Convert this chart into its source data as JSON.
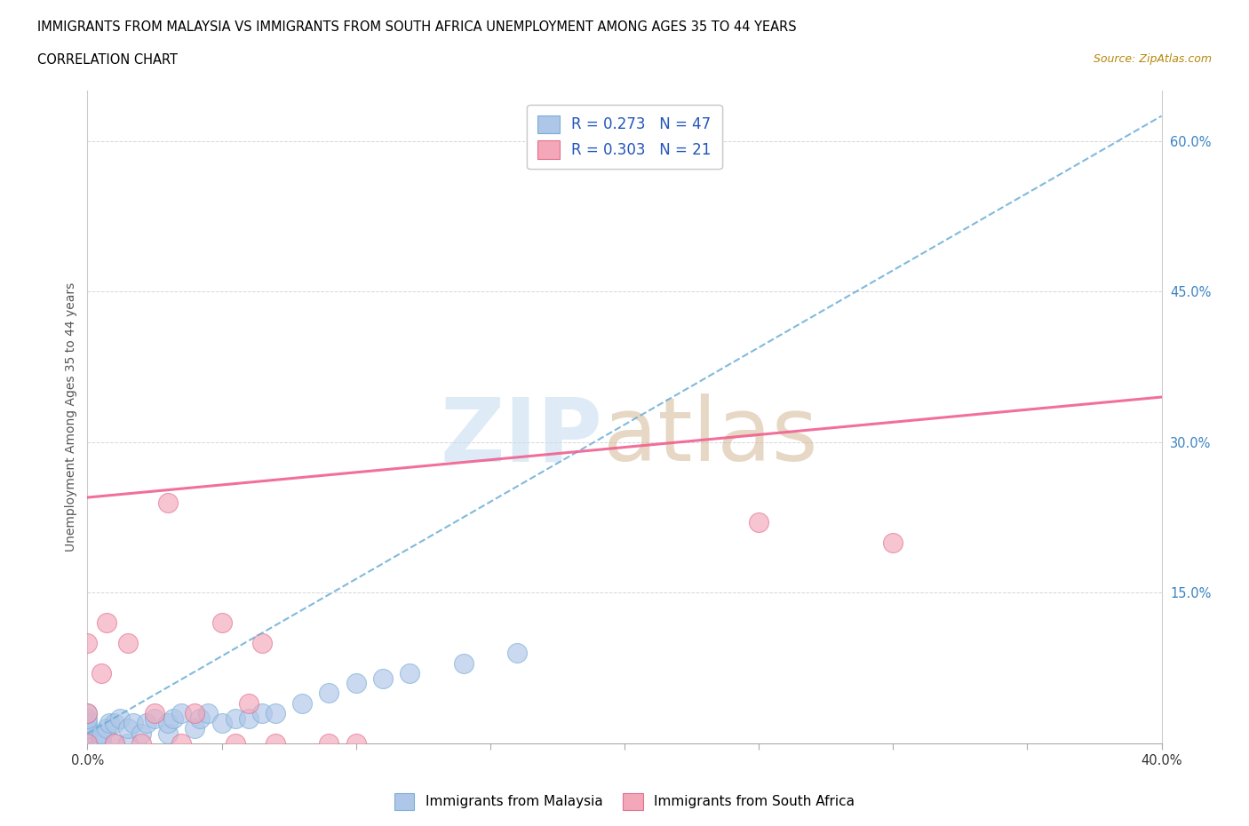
{
  "title_line1": "IMMIGRANTS FROM MALAYSIA VS IMMIGRANTS FROM SOUTH AFRICA UNEMPLOYMENT AMONG AGES 35 TO 44 YEARS",
  "title_line2": "CORRELATION CHART",
  "source_text": "Source: ZipAtlas.com",
  "ylabel": "Unemployment Among Ages 35 to 44 years",
  "x_min": 0.0,
  "x_max": 0.4,
  "y_min": 0.0,
  "y_max": 0.65,
  "x_ticks": [
    0.0,
    0.05,
    0.1,
    0.15,
    0.2,
    0.25,
    0.3,
    0.35,
    0.4
  ],
  "x_tick_labels": [
    "0.0%",
    "",
    "",
    "",
    "",
    "",
    "",
    "",
    "40.0%"
  ],
  "y_ticks": [
    0.0,
    0.15,
    0.3,
    0.45,
    0.6
  ],
  "y_tick_labels": [
    "",
    "15.0%",
    "30.0%",
    "45.0%",
    "60.0%"
  ],
  "legend_malaysia_label": "R = 0.273   N = 47",
  "legend_southafrica_label": "R = 0.303   N = 21",
  "legend_bottom_malaysia": "Immigrants from Malaysia",
  "legend_bottom_southafrica": "Immigrants from South Africa",
  "malaysia_color": "#aec6e8",
  "southafrica_color": "#f4a7b9",
  "malaysia_line_color": "#6baed6",
  "southafrica_line_color": "#f06090",
  "malaysia_scatter_x": [
    0.0,
    0.0,
    0.0,
    0.0,
    0.0,
    0.0,
    0.0,
    0.0,
    0.0,
    0.0,
    0.0,
    0.0,
    0.0,
    0.0,
    0.005,
    0.005,
    0.005,
    0.007,
    0.008,
    0.01,
    0.01,
    0.012,
    0.015,
    0.015,
    0.017,
    0.02,
    0.022,
    0.025,
    0.03,
    0.03,
    0.032,
    0.035,
    0.04,
    0.042,
    0.045,
    0.05,
    0.055,
    0.06,
    0.065,
    0.07,
    0.08,
    0.09,
    0.1,
    0.11,
    0.12,
    0.14,
    0.16
  ],
  "malaysia_scatter_y": [
    0.0,
    0.0,
    0.0,
    0.0,
    0.0,
    0.0,
    0.0,
    0.005,
    0.008,
    0.01,
    0.015,
    0.02,
    0.025,
    0.03,
    0.0,
    0.005,
    0.01,
    0.015,
    0.02,
    0.0,
    0.02,
    0.025,
    0.0,
    0.015,
    0.02,
    0.01,
    0.02,
    0.025,
    0.01,
    0.02,
    0.025,
    0.03,
    0.015,
    0.025,
    0.03,
    0.02,
    0.025,
    0.025,
    0.03,
    0.03,
    0.04,
    0.05,
    0.06,
    0.065,
    0.07,
    0.08,
    0.09
  ],
  "southafrica_scatter_x": [
    0.0,
    0.0,
    0.0,
    0.005,
    0.007,
    0.01,
    0.015,
    0.02,
    0.025,
    0.03,
    0.035,
    0.04,
    0.05,
    0.055,
    0.06,
    0.065,
    0.07,
    0.09,
    0.1,
    0.25,
    0.3
  ],
  "southafrica_scatter_y": [
    0.0,
    0.03,
    0.1,
    0.07,
    0.12,
    0.0,
    0.1,
    0.0,
    0.03,
    0.24,
    0.0,
    0.03,
    0.12,
    0.0,
    0.04,
    0.1,
    0.0,
    0.0,
    0.0,
    0.22,
    0.2
  ],
  "malaysia_trend_x": [
    0.0,
    0.4
  ],
  "malaysia_trend_y": [
    0.01,
    0.625
  ],
  "southafrica_trend_x": [
    0.0,
    0.4
  ],
  "southafrica_trend_y": [
    0.245,
    0.345
  ],
  "gridline_color": "#cccccc",
  "background_color": "#ffffff"
}
